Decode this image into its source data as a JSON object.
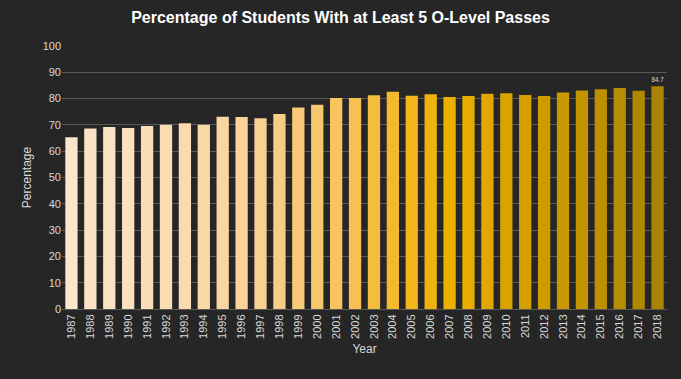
{
  "chart_data": {
    "type": "bar",
    "title": "Percentage of Students With at Least 5 O-Level Passes",
    "x_label": "Year",
    "y_label": "Percentage",
    "categories": [
      "1987",
      "1988",
      "1989",
      "1990",
      "1991",
      "1992",
      "1993",
      "1994",
      "1995",
      "1996",
      "1997",
      "1998",
      "1999",
      "2000",
      "2001",
      "2002",
      "2003",
      "2004",
      "2005",
      "2006",
      "2007",
      "2008",
      "2009",
      "2010",
      "2011",
      "2012",
      "2013",
      "2014",
      "2015",
      "2016",
      "2017",
      "2018"
    ],
    "values": [
      65.3,
      68.6,
      69.2,
      68.8,
      69.6,
      70.1,
      70.6,
      70.1,
      73.1,
      73.0,
      72.5,
      74.1,
      76.6,
      77.7,
      80.2,
      80.2,
      81.3,
      82.6,
      81.1,
      81.7,
      80.6,
      81.0,
      81.8,
      82.0,
      81.4,
      81.0,
      82.3,
      83.1,
      83.6,
      84.0,
      83.0,
      84.7
    ],
    "value_labels": [
      null,
      null,
      null,
      null,
      null,
      null,
      null,
      null,
      null,
      null,
      null,
      null,
      null,
      null,
      null,
      null,
      null,
      null,
      null,
      null,
      null,
      null,
      null,
      null,
      null,
      null,
      null,
      null,
      null,
      null,
      null,
      "84.7"
    ],
    "colors": [
      "#FBE5CB",
      "#FBE3C6",
      "#FBE2C2",
      "#FBE0BE",
      "#FADEB9",
      "#FADCB4",
      "#FADAAE",
      "#F9D8A8",
      "#F9D5A0",
      "#F9D398",
      "#F8D08F",
      "#F8CD85",
      "#F8CA7A",
      "#F7C76E",
      "#F7C460",
      "#F6C150",
      "#F5BD3E",
      "#F2BA2C",
      "#F0B61C",
      "#EEB30E",
      "#EBB000",
      "#E6AC00",
      "#E0A800",
      "#DAA400",
      "#D4A000",
      "#CE9C00",
      "#C89800",
      "#C29400",
      "#BC9000",
      "#B68C00",
      "#B08800",
      "#AA8400"
    ],
    "ylim": [
      0,
      100
    ],
    "yticks": [
      0,
      10,
      20,
      30,
      40,
      50,
      60,
      70,
      80,
      90,
      100
    ],
    "grid": true,
    "data_labels": true
  }
}
